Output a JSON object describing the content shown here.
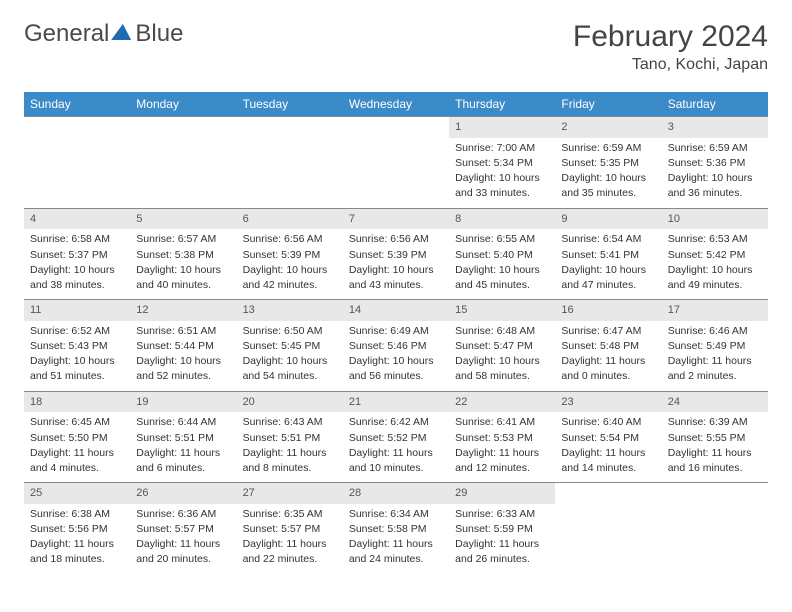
{
  "logo": {
    "text1": "General",
    "text2": "Blue"
  },
  "title": "February 2024",
  "location": "Tano, Kochi, Japan",
  "dayNames": [
    "Sunday",
    "Monday",
    "Tuesday",
    "Wednesday",
    "Thursday",
    "Friday",
    "Saturday"
  ],
  "colors": {
    "headerBar": "#3b8bc9",
    "dateBar": "#e8e8e8",
    "weekBorder": "#888888",
    "text": "#333333",
    "logoBlue": "#1f6bb0"
  },
  "layout": {
    "columns": 7,
    "rows": 5
  },
  "weeks": [
    [
      null,
      null,
      null,
      null,
      {
        "date": "1",
        "sunrise": "Sunrise: 7:00 AM",
        "sunset": "Sunset: 5:34 PM",
        "daylight1": "Daylight: 10 hours",
        "daylight2": "and 33 minutes."
      },
      {
        "date": "2",
        "sunrise": "Sunrise: 6:59 AM",
        "sunset": "Sunset: 5:35 PM",
        "daylight1": "Daylight: 10 hours",
        "daylight2": "and 35 minutes."
      },
      {
        "date": "3",
        "sunrise": "Sunrise: 6:59 AM",
        "sunset": "Sunset: 5:36 PM",
        "daylight1": "Daylight: 10 hours",
        "daylight2": "and 36 minutes."
      }
    ],
    [
      {
        "date": "4",
        "sunrise": "Sunrise: 6:58 AM",
        "sunset": "Sunset: 5:37 PM",
        "daylight1": "Daylight: 10 hours",
        "daylight2": "and 38 minutes."
      },
      {
        "date": "5",
        "sunrise": "Sunrise: 6:57 AM",
        "sunset": "Sunset: 5:38 PM",
        "daylight1": "Daylight: 10 hours",
        "daylight2": "and 40 minutes."
      },
      {
        "date": "6",
        "sunrise": "Sunrise: 6:56 AM",
        "sunset": "Sunset: 5:39 PM",
        "daylight1": "Daylight: 10 hours",
        "daylight2": "and 42 minutes."
      },
      {
        "date": "7",
        "sunrise": "Sunrise: 6:56 AM",
        "sunset": "Sunset: 5:39 PM",
        "daylight1": "Daylight: 10 hours",
        "daylight2": "and 43 minutes."
      },
      {
        "date": "8",
        "sunrise": "Sunrise: 6:55 AM",
        "sunset": "Sunset: 5:40 PM",
        "daylight1": "Daylight: 10 hours",
        "daylight2": "and 45 minutes."
      },
      {
        "date": "9",
        "sunrise": "Sunrise: 6:54 AM",
        "sunset": "Sunset: 5:41 PM",
        "daylight1": "Daylight: 10 hours",
        "daylight2": "and 47 minutes."
      },
      {
        "date": "10",
        "sunrise": "Sunrise: 6:53 AM",
        "sunset": "Sunset: 5:42 PM",
        "daylight1": "Daylight: 10 hours",
        "daylight2": "and 49 minutes."
      }
    ],
    [
      {
        "date": "11",
        "sunrise": "Sunrise: 6:52 AM",
        "sunset": "Sunset: 5:43 PM",
        "daylight1": "Daylight: 10 hours",
        "daylight2": "and 51 minutes."
      },
      {
        "date": "12",
        "sunrise": "Sunrise: 6:51 AM",
        "sunset": "Sunset: 5:44 PM",
        "daylight1": "Daylight: 10 hours",
        "daylight2": "and 52 minutes."
      },
      {
        "date": "13",
        "sunrise": "Sunrise: 6:50 AM",
        "sunset": "Sunset: 5:45 PM",
        "daylight1": "Daylight: 10 hours",
        "daylight2": "and 54 minutes."
      },
      {
        "date": "14",
        "sunrise": "Sunrise: 6:49 AM",
        "sunset": "Sunset: 5:46 PM",
        "daylight1": "Daylight: 10 hours",
        "daylight2": "and 56 minutes."
      },
      {
        "date": "15",
        "sunrise": "Sunrise: 6:48 AM",
        "sunset": "Sunset: 5:47 PM",
        "daylight1": "Daylight: 10 hours",
        "daylight2": "and 58 minutes."
      },
      {
        "date": "16",
        "sunrise": "Sunrise: 6:47 AM",
        "sunset": "Sunset: 5:48 PM",
        "daylight1": "Daylight: 11 hours",
        "daylight2": "and 0 minutes."
      },
      {
        "date": "17",
        "sunrise": "Sunrise: 6:46 AM",
        "sunset": "Sunset: 5:49 PM",
        "daylight1": "Daylight: 11 hours",
        "daylight2": "and 2 minutes."
      }
    ],
    [
      {
        "date": "18",
        "sunrise": "Sunrise: 6:45 AM",
        "sunset": "Sunset: 5:50 PM",
        "daylight1": "Daylight: 11 hours",
        "daylight2": "and 4 minutes."
      },
      {
        "date": "19",
        "sunrise": "Sunrise: 6:44 AM",
        "sunset": "Sunset: 5:51 PM",
        "daylight1": "Daylight: 11 hours",
        "daylight2": "and 6 minutes."
      },
      {
        "date": "20",
        "sunrise": "Sunrise: 6:43 AM",
        "sunset": "Sunset: 5:51 PM",
        "daylight1": "Daylight: 11 hours",
        "daylight2": "and 8 minutes."
      },
      {
        "date": "21",
        "sunrise": "Sunrise: 6:42 AM",
        "sunset": "Sunset: 5:52 PM",
        "daylight1": "Daylight: 11 hours",
        "daylight2": "and 10 minutes."
      },
      {
        "date": "22",
        "sunrise": "Sunrise: 6:41 AM",
        "sunset": "Sunset: 5:53 PM",
        "daylight1": "Daylight: 11 hours",
        "daylight2": "and 12 minutes."
      },
      {
        "date": "23",
        "sunrise": "Sunrise: 6:40 AM",
        "sunset": "Sunset: 5:54 PM",
        "daylight1": "Daylight: 11 hours",
        "daylight2": "and 14 minutes."
      },
      {
        "date": "24",
        "sunrise": "Sunrise: 6:39 AM",
        "sunset": "Sunset: 5:55 PM",
        "daylight1": "Daylight: 11 hours",
        "daylight2": "and 16 minutes."
      }
    ],
    [
      {
        "date": "25",
        "sunrise": "Sunrise: 6:38 AM",
        "sunset": "Sunset: 5:56 PM",
        "daylight1": "Daylight: 11 hours",
        "daylight2": "and 18 minutes."
      },
      {
        "date": "26",
        "sunrise": "Sunrise: 6:36 AM",
        "sunset": "Sunset: 5:57 PM",
        "daylight1": "Daylight: 11 hours",
        "daylight2": "and 20 minutes."
      },
      {
        "date": "27",
        "sunrise": "Sunrise: 6:35 AM",
        "sunset": "Sunset: 5:57 PM",
        "daylight1": "Daylight: 11 hours",
        "daylight2": "and 22 minutes."
      },
      {
        "date": "28",
        "sunrise": "Sunrise: 6:34 AM",
        "sunset": "Sunset: 5:58 PM",
        "daylight1": "Daylight: 11 hours",
        "daylight2": "and 24 minutes."
      },
      {
        "date": "29",
        "sunrise": "Sunrise: 6:33 AM",
        "sunset": "Sunset: 5:59 PM",
        "daylight1": "Daylight: 11 hours",
        "daylight2": "and 26 minutes."
      },
      null,
      null
    ]
  ]
}
